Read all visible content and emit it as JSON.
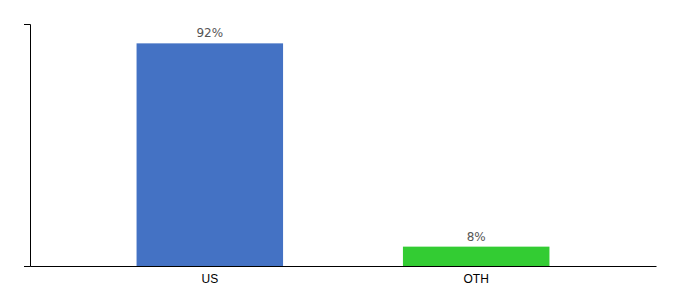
{
  "chart_data": {
    "type": "bar",
    "categories": [
      "US",
      "OTH"
    ],
    "values": [
      92,
      8
    ],
    "value_labels": [
      "92%",
      "8%"
    ],
    "colors": [
      "#4472C4",
      "#33CC33"
    ],
    "ylim": [
      0,
      100
    ],
    "yticks": [],
    "grid": false,
    "data_labels": true,
    "tick_labels": "x"
  }
}
